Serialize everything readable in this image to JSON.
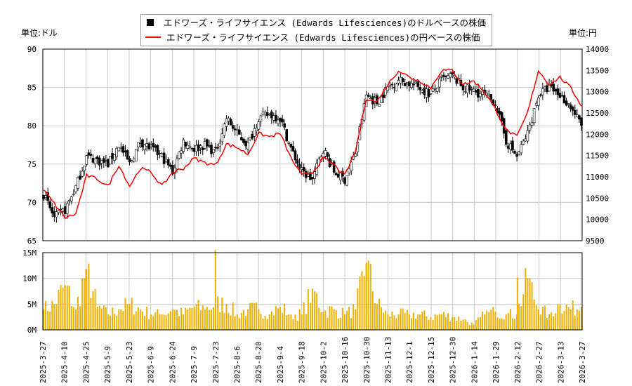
{
  "chart_data": [
    {
      "type": "candlestick+line",
      "legend": [
        {
          "name": "エドワーズ・ライフサイエンス (Edwards Lifesciences)のドルベースの株価",
          "color": "#000000",
          "marker": "square"
        },
        {
          "name": "エドワーズ・ライフサイエンス (Edwards Lifesciences)の円ベースの株価",
          "color": "#ff0000",
          "marker": "line"
        }
      ],
      "legend_placement": "top-center",
      "left_unit": "単位:ドル",
      "right_unit": "単位:円",
      "ylim_left": [
        65,
        90
      ],
      "yticks_left": [
        "65",
        "70",
        "75",
        "80",
        "85",
        "90"
      ],
      "ylim_right": [
        9500,
        14000
      ],
      "yticks_right": [
        "9500",
        "10000",
        "10500",
        "11000",
        "11500",
        "12000",
        "12500",
        "13000",
        "13500",
        "14000"
      ],
      "grid": true,
      "x_tick_labels": [
        "2025-3-27",
        "2025-4-10",
        "2025-4-25",
        "2025-5-9",
        "2025-5-23",
        "2025-6-9",
        "2025-6-24",
        "2025-7-9",
        "2025-7-23",
        "2025-8-6",
        "2025-8-20",
        "2025-9-4",
        "2025-9-18",
        "2025-10-2",
        "2025-10-16",
        "2025-10-30",
        "2025-11-13",
        "2025-12-1",
        "2025-12-15",
        "2025-12-30",
        "2026-1-14",
        "2026-1-29",
        "2026-2-12",
        "2026-2-27",
        "2026-3-13",
        "2026-3-27"
      ],
      "sample_step_trading_days": 5,
      "usd_close": [
        71,
        68,
        69,
        72,
        76,
        75.5,
        75,
        77.5,
        75,
        78,
        77,
        76,
        74,
        78,
        77,
        77.5,
        76.5,
        81,
        79,
        77.5,
        81,
        81.5,
        81,
        77,
        74,
        73,
        77,
        74,
        73,
        76.5,
        84,
        83,
        85,
        86,
        85.5,
        85,
        84,
        86,
        86.5,
        85,
        84.5,
        84,
        83,
        78,
        76,
        79,
        84,
        85,
        84,
        82.5,
        80
      ],
      "jpy_close": [
        10700,
        10370,
        10040,
        10130,
        11030,
        10950,
        10780,
        11280,
        10780,
        11200,
        11110,
        10780,
        11110,
        11200,
        11440,
        11330,
        11280,
        11770,
        11690,
        11530,
        12020,
        11940,
        12020,
        11440,
        11030,
        11110,
        11440,
        11280,
        11030,
        11610,
        12840,
        12760,
        13170,
        13500,
        13340,
        13250,
        13090,
        13500,
        13500,
        13170,
        13250,
        13000,
        12590,
        12100,
        11940,
        12510,
        13500,
        13170,
        13340,
        13090,
        12680
      ]
    },
    {
      "type": "bar",
      "ylim": [
        0,
        15
      ],
      "yticks": [
        "0M",
        "5M",
        "10M",
        "15M"
      ],
      "bar_color": "#f0b000",
      "grid": true,
      "volume_millions": [
        4,
        5,
        8.7,
        4,
        11.8,
        4.5,
        3,
        4,
        5,
        4,
        3,
        3,
        4,
        3,
        4.5,
        4,
        5,
        5,
        3,
        4,
        4,
        3,
        4.5,
        3,
        3,
        8,
        3.5,
        4,
        3,
        4,
        13,
        5,
        3,
        3,
        3,
        3,
        2.5,
        3,
        2.5,
        2,
        1,
        3,
        3.5,
        3,
        3,
        10,
        4,
        3,
        5,
        4,
        4.5
      ],
      "volume_spikes": [
        {
          "date": "2025-7-23",
          "value": 15.5
        },
        {
          "date": "2025-10-30",
          "value": 13
        },
        {
          "date": "2025-4-25",
          "value": 11.8
        },
        {
          "date": "2026-2-12",
          "value": 10.2
        }
      ]
    }
  ]
}
